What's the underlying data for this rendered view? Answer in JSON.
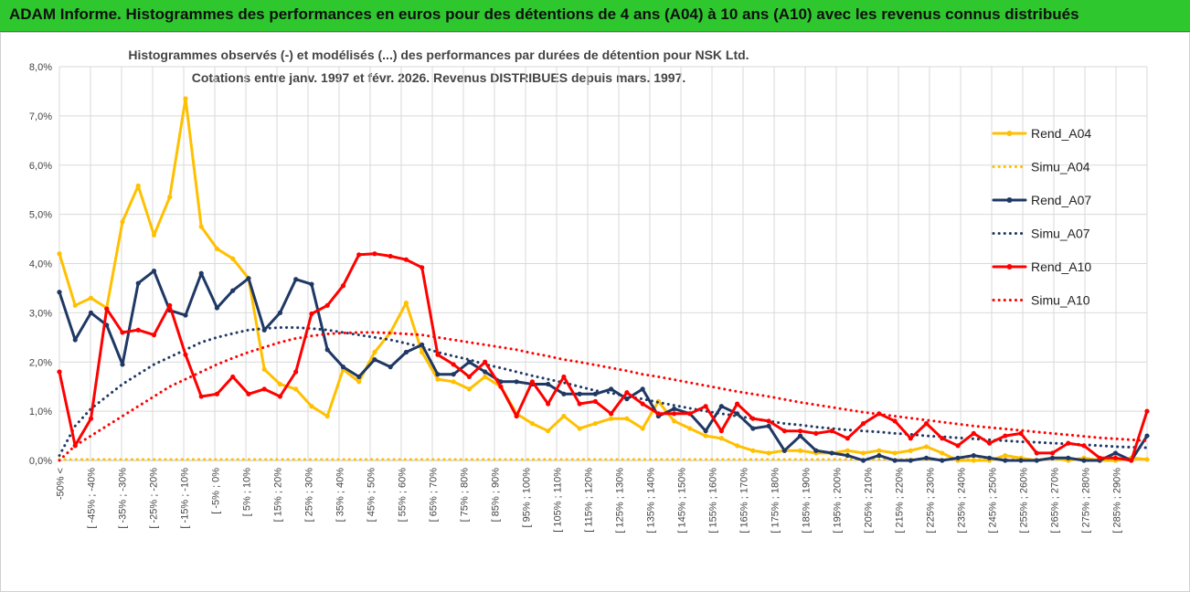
{
  "header": {
    "title": "ADAM Informe. Histogrammes des performances en euros pour des détentions de 4 ans (A04) à 10 ans (A10) avec les revenus connus distribués"
  },
  "colors": {
    "header_bg": "#2ec82e",
    "a04": "#ffc000",
    "a07": "#1f3864",
    "a10": "#ff0000",
    "grid": "#d9d9d9"
  },
  "chart_data": {
    "type": "line",
    "title": "Histogrammes observés (-) et modélisés (...) des performances par durées de détention pour NSK Ltd.",
    "subtitle": "Cotations entre janv. 1997 et févr. 2026. Revenus DISTRIBUES depuis mars. 1997.",
    "xlabel": "",
    "ylabel": "",
    "ylim": [
      0,
      8
    ],
    "y_ticks": [
      "0,0%",
      "1,0%",
      "2,0%",
      "3,0%",
      "4,0%",
      "5,0%",
      "6,0%",
      "7,0%",
      "8,0%"
    ],
    "grid": true,
    "legend_position": "right",
    "x_tick_labels": [
      "-50% <",
      "[ -45% ; -40%",
      "[ -35% ; -30%",
      "[ -25% ; -20%",
      "[ -15% ; -10%",
      "[ -5% ; 0%",
      "[ 5% ; 10%",
      "[ 15% ; 20%",
      "[ 25% ; 30%",
      "[ 35% ; 40%",
      "[ 45% ; 50%",
      "[ 55% ; 60%",
      "[ 65% ; 70%",
      "[ 75% ; 80%",
      "[ 85% ; 90%",
      "[ 95% ; 100%",
      "[ 105% ; 110%",
      "[ 115% ; 120%",
      "[ 125% ; 130%",
      "[ 135% ; 140%",
      "[ 145% ; 150%",
      "[ 155% ; 160%",
      "[ 165% ; 170%",
      "[ 175% ; 180%",
      "[ 185% ; 190%",
      "[ 195% ; 200%",
      "[ 205% ; 210%",
      "[ 215% ; 220%",
      "[ 225% ; 230%",
      "[ 235% ; 240%",
      "[ 245% ; 250%",
      "[ 255% ; 260%",
      "[ 265% ; 270%",
      "[ 275% ; 280%",
      "[ 285% ; 290%"
    ],
    "n_categories": 70,
    "series": [
      {
        "name": "Rend_A04",
        "style": "solid",
        "color": "#ffc000",
        "values": [
          4.2,
          3.15,
          3.3,
          3.1,
          4.85,
          5.58,
          4.58,
          5.35,
          7.35,
          4.75,
          4.3,
          4.1,
          3.7,
          1.85,
          1.55,
          1.45,
          1.1,
          0.9,
          1.85,
          1.6,
          2.2,
          2.6,
          3.2,
          2.2,
          1.65,
          1.6,
          1.45,
          1.7,
          1.5,
          0.95,
          0.75,
          0.6,
          0.9,
          0.65,
          0.75,
          0.85,
          0.85,
          0.65,
          1.2,
          0.8,
          0.65,
          0.5,
          0.45,
          0.3,
          0.2,
          0.15,
          0.2,
          0.2,
          0.15,
          0.15,
          0.2,
          0.15,
          0.2,
          0.15,
          0.2,
          0.28,
          0.15,
          0.0,
          0.0,
          0.0,
          0.1,
          0.05,
          0.0,
          0.05,
          0.0,
          0.05,
          0.0,
          0.0,
          0.05,
          0.02
        ]
      },
      {
        "name": "Simu_A04",
        "style": "dotted",
        "color": "#ffc000",
        "values": [
          0.02,
          0.02,
          0.02,
          0.02,
          0.02,
          0.02,
          0.02,
          0.02,
          0.02,
          0.02,
          0.02,
          0.02,
          0.02,
          0.02,
          0.02,
          0.02,
          0.02,
          0.02,
          0.02,
          0.02,
          0.02,
          0.02,
          0.02,
          0.02,
          0.02,
          0.02,
          0.02,
          0.02,
          0.02,
          0.02,
          0.02,
          0.02,
          0.02,
          0.02,
          0.02,
          0.02,
          0.02,
          0.02,
          0.02,
          0.02,
          0.02,
          0.02,
          0.02,
          0.02,
          0.02,
          0.02,
          0.02,
          0.02,
          0.02,
          0.02,
          0.02,
          0.02,
          0.02,
          0.02,
          0.02,
          0.02,
          0.02,
          0.02,
          0.02,
          0.02,
          0.02,
          0.02,
          0.02,
          0.02,
          0.02,
          0.02,
          0.02,
          0.02,
          0.02,
          0.02
        ]
      },
      {
        "name": "Rend_A07",
        "style": "solid",
        "color": "#1f3864",
        "values": [
          3.42,
          2.45,
          3.0,
          2.75,
          1.95,
          3.6,
          3.85,
          3.05,
          2.95,
          3.8,
          3.1,
          3.45,
          3.7,
          2.65,
          3.0,
          3.68,
          3.58,
          2.25,
          1.9,
          1.7,
          2.05,
          1.9,
          2.2,
          2.35,
          1.75,
          1.75,
          2.0,
          1.8,
          1.6,
          1.6,
          1.55,
          1.55,
          1.35,
          1.35,
          1.35,
          1.45,
          1.25,
          1.45,
          0.9,
          1.05,
          0.95,
          0.6,
          1.1,
          0.95,
          0.65,
          0.7,
          0.2,
          0.5,
          0.2,
          0.15,
          0.1,
          0.0,
          0.1,
          0.0,
          0.0,
          0.05,
          0.0,
          0.05,
          0.1,
          0.05,
          0.0,
          0.0,
          0.0,
          0.05,
          0.05,
          0.0,
          0.0,
          0.15,
          0.0,
          0.5
        ]
      },
      {
        "name": "Simu_A07",
        "style": "dotted",
        "color": "#1f3864",
        "values": [
          0.1,
          0.7,
          1.05,
          1.3,
          1.55,
          1.75,
          1.95,
          2.1,
          2.25,
          2.4,
          2.5,
          2.58,
          2.65,
          2.68,
          2.7,
          2.7,
          2.68,
          2.65,
          2.6,
          2.55,
          2.5,
          2.45,
          2.38,
          2.3,
          2.2,
          2.12,
          2.05,
          1.95,
          1.88,
          1.8,
          1.72,
          1.65,
          1.58,
          1.5,
          1.42,
          1.37,
          1.3,
          1.25,
          1.18,
          1.12,
          1.06,
          1.0,
          0.95,
          0.9,
          0.85,
          0.8,
          0.75,
          0.72,
          0.68,
          0.65,
          0.62,
          0.6,
          0.58,
          0.55,
          0.53,
          0.5,
          0.48,
          0.46,
          0.44,
          0.42,
          0.4,
          0.38,
          0.37,
          0.35,
          0.34,
          0.32,
          0.3,
          0.28,
          0.27,
          0.26
        ]
      },
      {
        "name": "Rend_A10",
        "style": "solid",
        "color": "#ff0000",
        "values": [
          1.8,
          0.3,
          0.85,
          3.08,
          2.6,
          2.65,
          2.55,
          3.15,
          2.15,
          1.3,
          1.35,
          1.7,
          1.35,
          1.45,
          1.3,
          1.8,
          2.98,
          3.15,
          3.55,
          4.18,
          4.2,
          4.15,
          4.08,
          3.92,
          2.15,
          1.95,
          1.7,
          2.0,
          1.5,
          0.9,
          1.6,
          1.15,
          1.7,
          1.15,
          1.2,
          0.95,
          1.38,
          1.15,
          0.95,
          0.95,
          0.95,
          1.1,
          0.6,
          1.15,
          0.85,
          0.8,
          0.6,
          0.6,
          0.55,
          0.6,
          0.45,
          0.75,
          0.95,
          0.8,
          0.45,
          0.75,
          0.45,
          0.3,
          0.55,
          0.35,
          0.5,
          0.55,
          0.15,
          0.15,
          0.35,
          0.3,
          0.05,
          0.05,
          0.0,
          1.0
        ]
      },
      {
        "name": "Simu_A10",
        "style": "dotted",
        "color": "#ff0000",
        "values": [
          0.0,
          0.3,
          0.5,
          0.7,
          0.9,
          1.1,
          1.3,
          1.5,
          1.65,
          1.8,
          1.95,
          2.08,
          2.2,
          2.3,
          2.4,
          2.48,
          2.53,
          2.57,
          2.59,
          2.6,
          2.6,
          2.59,
          2.57,
          2.55,
          2.5,
          2.45,
          2.4,
          2.35,
          2.3,
          2.25,
          2.18,
          2.12,
          2.05,
          2.0,
          1.94,
          1.88,
          1.82,
          1.75,
          1.7,
          1.64,
          1.58,
          1.52,
          1.46,
          1.4,
          1.35,
          1.3,
          1.24,
          1.18,
          1.13,
          1.08,
          1.03,
          0.98,
          0.94,
          0.9,
          0.86,
          0.82,
          0.78,
          0.74,
          0.7,
          0.67,
          0.64,
          0.61,
          0.58,
          0.55,
          0.52,
          0.49,
          0.46,
          0.44,
          0.42,
          0.4
        ]
      }
    ]
  }
}
